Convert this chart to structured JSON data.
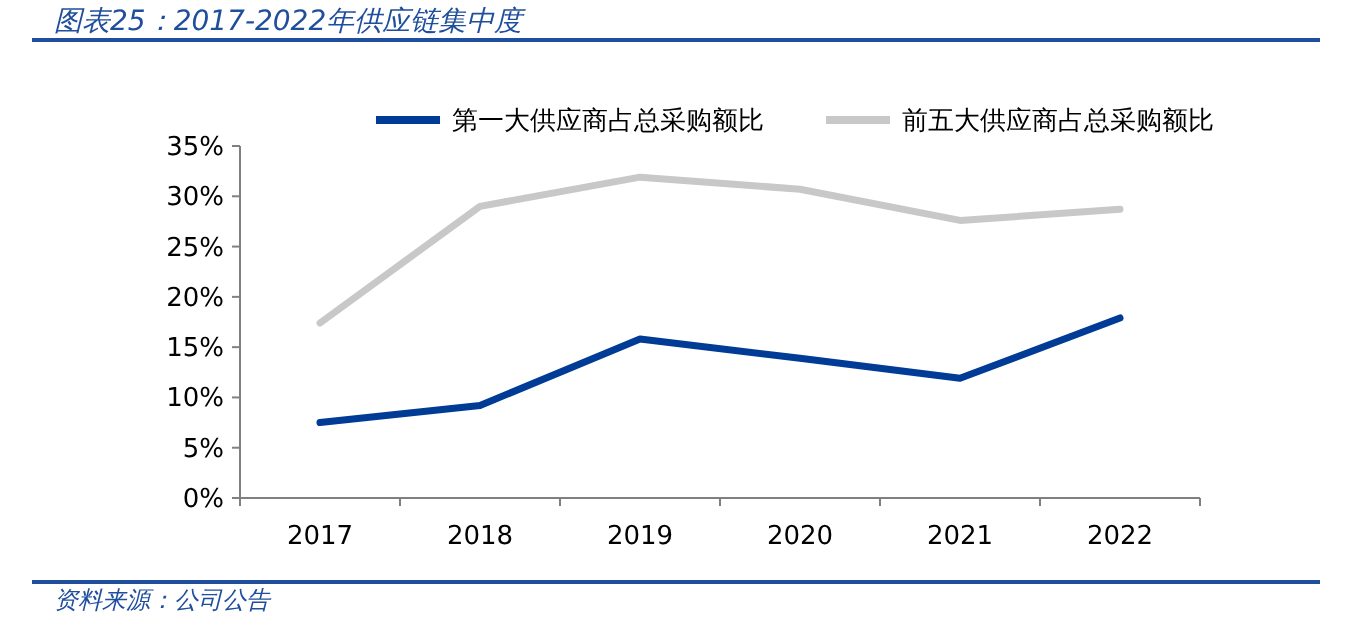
{
  "chart_data": {
    "type": "line",
    "title": "图表25：2017-2022年供应链集中度",
    "categories": [
      "2017",
      "2018",
      "2019",
      "2020",
      "2021",
      "2022"
    ],
    "series": [
      {
        "name": "第一大供应商占总采购额比",
        "color": "#003b95",
        "values": [
          7.5,
          9.2,
          15.8,
          13.9,
          11.9,
          17.9
        ]
      },
      {
        "name": "前五大供应商占总采购额比",
        "color": "#c8c8c8",
        "values": [
          17.4,
          29.0,
          31.9,
          30.7,
          27.6,
          28.7
        ]
      }
    ],
    "ylim": [
      0,
      35
    ],
    "yticks": [
      {
        "value": 0,
        "label": "0%"
      },
      {
        "value": 5,
        "label": "5%"
      },
      {
        "value": 10,
        "label": "10%"
      },
      {
        "value": 15,
        "label": "15%"
      },
      {
        "value": 20,
        "label": "20%"
      },
      {
        "value": 25,
        "label": "25%"
      },
      {
        "value": 30,
        "label": "30%"
      },
      {
        "value": 35,
        "label": "35%"
      }
    ],
    "legend": "top",
    "grid": false,
    "marker": "none",
    "line_style": "solid",
    "annotations": [
      "资料来源：公司公告"
    ]
  }
}
